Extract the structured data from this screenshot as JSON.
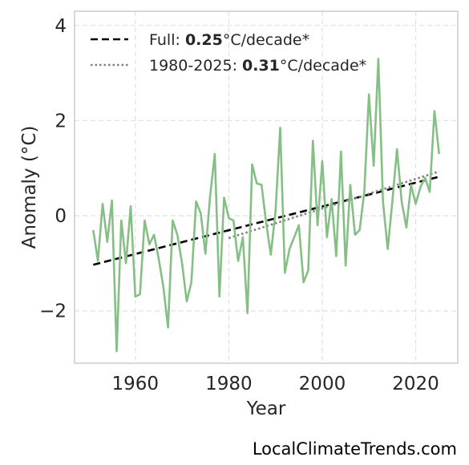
{
  "chart_data": {
    "type": "line",
    "xlabel": "Year",
    "ylabel": "Anomaly (°C)",
    "xlim": [
      1947,
      2029
    ],
    "ylim": [
      -3.1,
      4.3
    ],
    "xticks": [
      1960,
      1980,
      2000,
      2020
    ],
    "yticks": [
      -2,
      0,
      2,
      4
    ],
    "ytick_labels": [
      "−2",
      "0",
      "2",
      "4"
    ],
    "grid": true,
    "legend_position": "top-left",
    "series": [
      {
        "color": "#86bf86",
        "x": [
          1951,
          1952,
          1953,
          1954,
          1955,
          1956,
          1957,
          1958,
          1959,
          1960,
          1961,
          1962,
          1963,
          1964,
          1965,
          1966,
          1967,
          1968,
          1969,
          1970,
          1971,
          1972,
          1973,
          1974,
          1975,
          1976,
          1977,
          1978,
          1979,
          1980,
          1981,
          1982,
          1983,
          1984,
          1985,
          1986,
          1987,
          1988,
          1989,
          1990,
          1991,
          1992,
          1993,
          1994,
          1995,
          1996,
          1997,
          1998,
          1999,
          2000,
          2001,
          2002,
          2003,
          2004,
          2005,
          2006,
          2007,
          2008,
          2009,
          2010,
          2011,
          2012,
          2013,
          2014,
          2015,
          2016,
          2017,
          2018,
          2019,
          2020,
          2021,
          2022,
          2023,
          2024,
          2025
        ],
        "y": [
          -0.3,
          -0.95,
          0.25,
          -0.55,
          0.32,
          -2.85,
          -0.1,
          -1.0,
          0.2,
          -1.7,
          -1.65,
          -0.1,
          -0.6,
          -0.4,
          -0.9,
          -1.5,
          -2.35,
          -0.1,
          -0.4,
          -1.0,
          -1.8,
          -1.4,
          0.3,
          0.05,
          -0.8,
          0.4,
          1.3,
          -1.7,
          0.38,
          -0.05,
          -0.1,
          -0.95,
          -0.45,
          -2.05,
          1.08,
          0.68,
          0.65,
          -0.15,
          -0.82,
          0.1,
          1.85,
          -1.2,
          -0.7,
          -0.45,
          -0.2,
          -1.4,
          -1.15,
          1.58,
          -0.2,
          1.15,
          -0.45,
          0.35,
          -0.85,
          1.35,
          -1.05,
          0.65,
          -0.4,
          -0.3,
          0.5,
          2.55,
          1.05,
          3.3,
          0.3,
          -0.7,
          0.3,
          1.4,
          0.3,
          -0.25,
          0.65,
          0.25,
          0.6,
          0.8,
          0.5,
          2.2,
          1.3
        ]
      }
    ],
    "trends": [
      {
        "label_prefix": "Full: ",
        "label_value": "0.25",
        "label_suffix": "°C/decade*",
        "style": "dashed",
        "color": "#000000",
        "x": [
          1951,
          2025
        ],
        "y": [
          -1.03,
          0.82
        ]
      },
      {
        "label_prefix": "1980-2025: ",
        "label_value": "0.31",
        "label_suffix": "°C/decade*",
        "style": "dotted",
        "color": "#808080",
        "x": [
          1980,
          2025
        ],
        "y": [
          -0.47,
          0.93
        ]
      }
    ]
  },
  "credit": "LocalClimateTrends.com"
}
